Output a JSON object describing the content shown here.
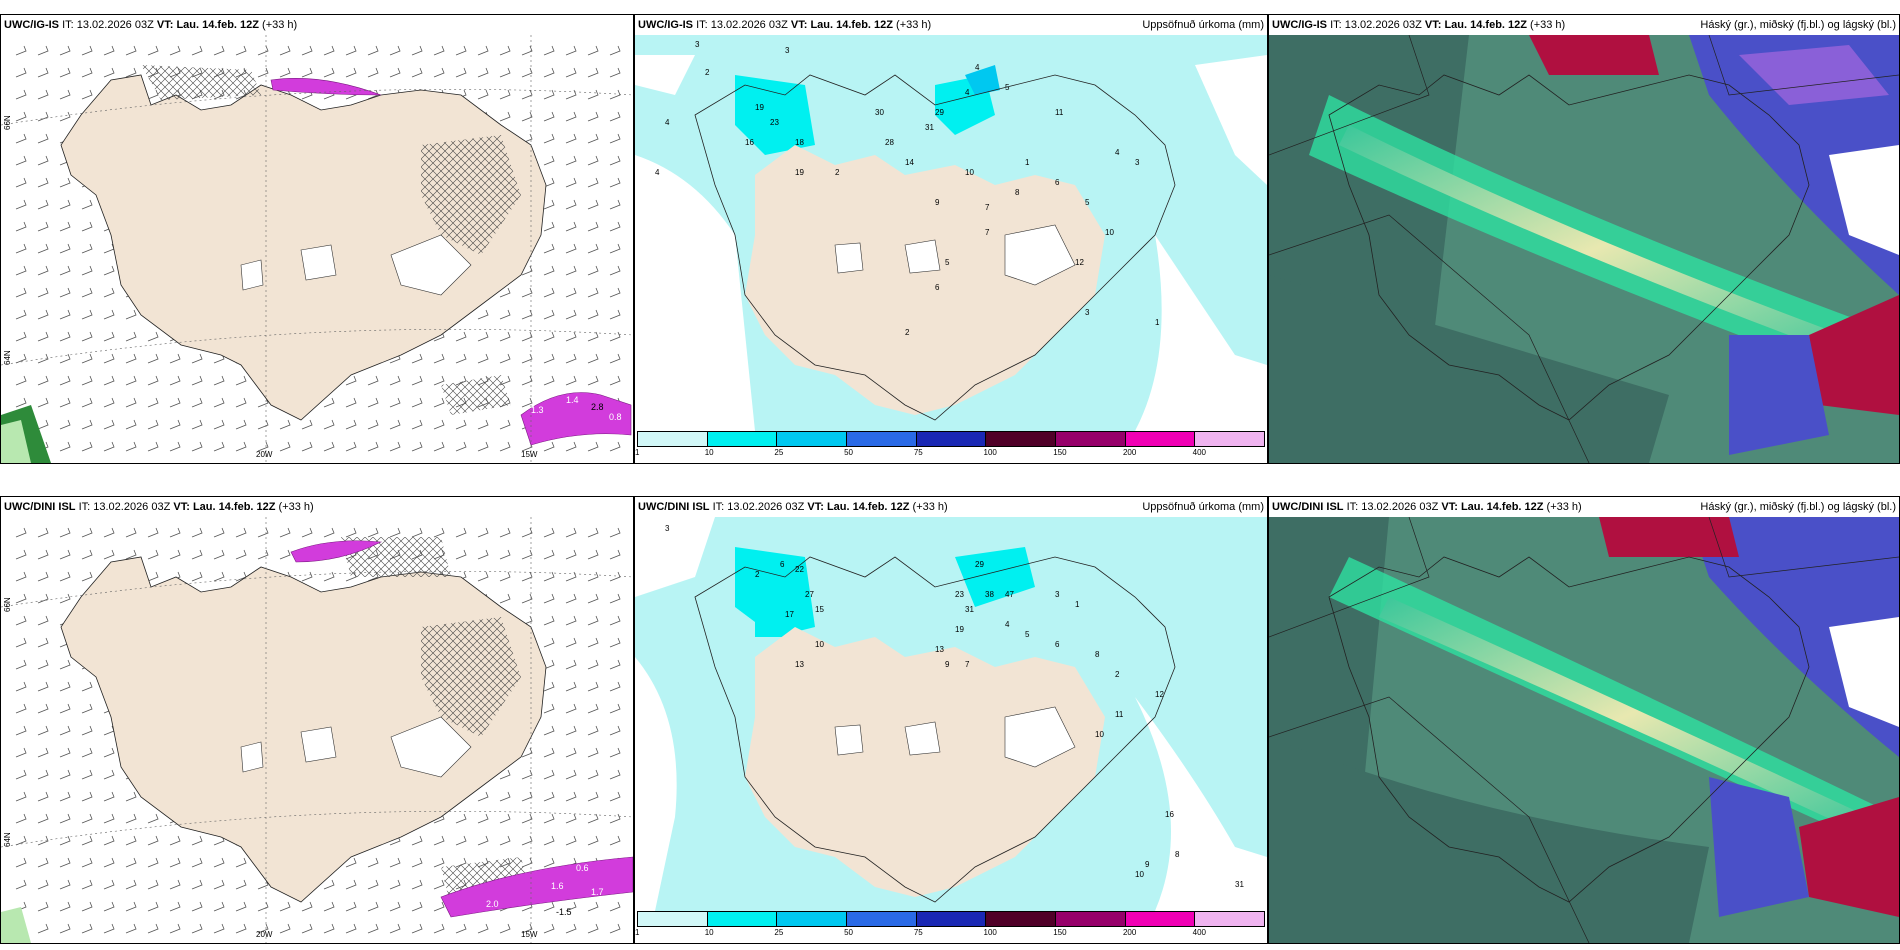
{
  "rows": [
    {
      "model": "UWC/IG-IS",
      "it_label": "IT:",
      "it_value": "13.02.2026 03Z",
      "vt_label": "VT:",
      "vt_value": "Lau. 14.feb. 12Z",
      "lead": "(+33 h)",
      "precip_title": "Uppsöfnuð úrkoma (mm)",
      "cloud_title": "Háský (gr.), miðský (fj.bl.) og lágský (bl.)",
      "wind_values": [
        "1.3",
        "1.4",
        "2.8",
        "0.8"
      ],
      "lon_labels": [
        "20W",
        "15W"
      ],
      "lat_labels": [
        "66N",
        "64N"
      ],
      "precip_values": [
        "3",
        "4",
        "3",
        "2",
        "4",
        "19",
        "23",
        "16",
        "18",
        "19",
        "4",
        "5",
        "4",
        "29",
        "31",
        "30",
        "28",
        "14",
        "10",
        "7",
        "8",
        "6",
        "5",
        "4",
        "3",
        "2",
        "1",
        "11",
        "9",
        "6",
        "5",
        "7",
        "12",
        "10",
        "3",
        "2",
        "1"
      ]
    },
    {
      "model": "UWC/DINI ISL",
      "it_label": "IT:",
      "it_value": "13.02.2026 03Z",
      "vt_label": "VT:",
      "vt_value": "Lau. 14.feb. 12Z",
      "lead": "(+33 h)",
      "precip_title": "Uppsöfnuð úrkoma (mm)",
      "cloud_title": "Háský (gr.), miðský (fj.bl.) og lágský (bl.)",
      "wind_values": [
        "2.0",
        "1.6",
        "1.7",
        "0.6",
        "-1.5"
      ],
      "lon_labels": [
        "20W",
        "15W"
      ],
      "lat_labels": [
        "66N",
        "64N"
      ],
      "precip_values": [
        "3",
        "2",
        "6",
        "22",
        "27",
        "15",
        "17",
        "10",
        "13",
        "29",
        "23",
        "38",
        "47",
        "31",
        "19",
        "13",
        "9",
        "7",
        "4",
        "5",
        "6",
        "8",
        "2",
        "1",
        "3",
        "12",
        "11",
        "10",
        "16",
        "31",
        "8",
        "9",
        "10"
      ]
    }
  ],
  "colorbar": {
    "labels": [
      "1",
      "10",
      "25",
      "50",
      "75",
      "100",
      "150",
      "200",
      "400"
    ],
    "colors": [
      "#d2f8f8",
      "#00f0f0",
      "#00c8f0",
      "#2a6ae6",
      "#1a28b4",
      "#500028",
      "#96006a",
      "#f000b4",
      "#f0b4f0"
    ]
  },
  "colors": {
    "land": "#f2e4d4",
    "sea_light": "#b8f4f4",
    "magenta": "#d23cdc",
    "cloud_base": "#4f8a78"
  }
}
